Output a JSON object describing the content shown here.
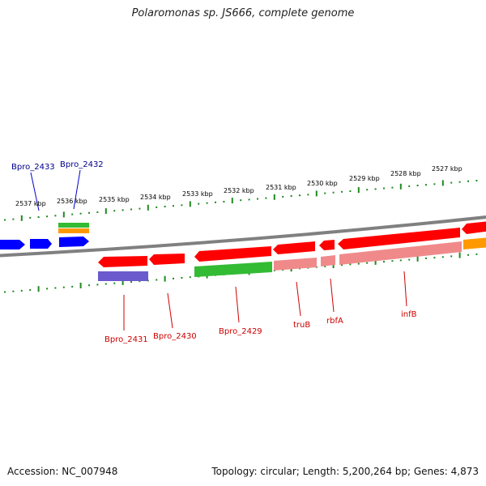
{
  "title": "Polaromonas sp. JS666, complete genome",
  "footer": {
    "accession": "Accession: NC_007948",
    "stats": "Topology: circular; Length: 5,200,264 bp; Genes: 4,873"
  },
  "scale_labels": [
    "2537 kbp",
    "2536 kbp",
    "2535 kbp",
    "2534 kbp",
    "2533 kbp",
    "2532 kbp",
    "2531 kbp",
    "2530 kbp",
    "2529 kbp",
    "2528 kbp",
    "2527 kbp"
  ],
  "gene_labels": {
    "outer": [
      "Bpro_2433",
      "Bpro_2432"
    ],
    "inner": [
      "Bpro_2431",
      "Bpro_2430",
      "Bpro_2429",
      "truB",
      "rbfA",
      "infB"
    ]
  },
  "colors": {
    "backbone": "#808080",
    "tick": "#1f8a1f",
    "forward_gene": "#0000ff",
    "reverse_gene": "#ff0000",
    "reverse_gene_pale": "#f08a8a",
    "orange_feature": "#ff9900",
    "green_feature": "#33bb33",
    "purple_feature": "#6a5acd",
    "outer_label": "#00008b",
    "inner_label": "#cc0000"
  }
}
